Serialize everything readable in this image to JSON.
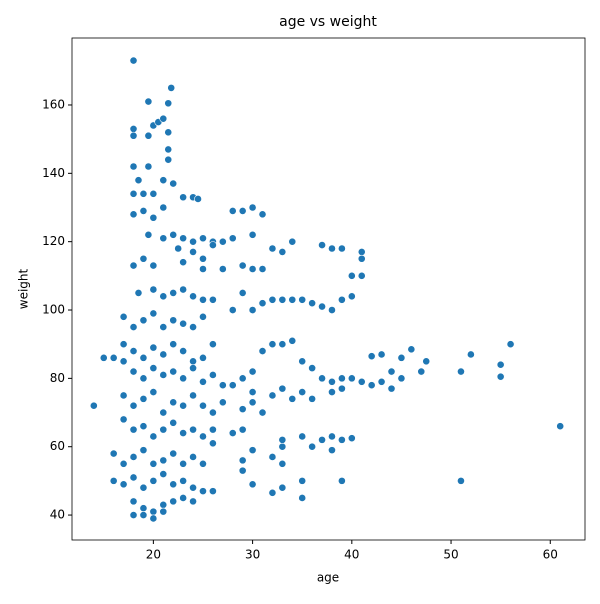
{
  "chart_data": {
    "type": "scatter",
    "title": "age vs weight",
    "x_label": "age",
    "y_label": "weight",
    "color": "#1f77b4",
    "xlim": [
      11.8,
      63.5
    ],
    "ylim": [
      32.7,
      179.6
    ],
    "xticks": [
      20,
      30,
      40,
      50,
      60
    ],
    "yticks": [
      40,
      60,
      80,
      100,
      120,
      140,
      160
    ],
    "x": [
      18,
      21.8,
      19.5,
      21.5,
      14,
      15,
      61,
      56,
      52,
      51,
      51,
      55,
      55,
      47.5,
      47,
      46,
      45,
      45,
      44,
      43,
      42,
      18,
      18,
      19.5,
      20,
      20.5,
      21,
      21.5,
      21.5,
      21.5,
      18,
      18.5,
      19.5,
      18,
      19,
      20,
      21,
      22,
      23,
      24,
      24.5,
      18,
      19,
      20,
      21,
      19.5,
      21,
      22,
      23,
      24,
      25,
      26,
      27,
      28,
      22.5,
      24,
      25,
      26,
      23,
      25,
      27,
      29,
      30,
      31,
      18,
      19,
      20,
      18.5,
      20,
      21,
      22,
      23,
      24,
      25,
      26,
      28,
      29,
      30,
      31,
      32,
      33,
      34,
      35,
      36,
      37,
      38,
      39,
      40,
      41,
      41,
      41,
      39,
      38,
      37,
      40,
      34,
      32,
      30,
      31,
      30,
      29,
      28,
      33,
      17,
      18,
      19,
      20,
      21,
      22,
      23,
      24,
      25,
      17,
      18,
      19,
      20,
      21,
      22,
      23,
      24,
      25,
      26,
      16,
      17,
      18,
      19,
      20,
      21,
      22,
      23,
      24,
      25,
      26,
      27,
      28,
      29,
      30,
      31,
      32,
      33,
      34,
      35,
      36,
      37,
      38,
      39,
      40,
      41,
      42,
      43,
      44,
      38,
      39,
      36,
      34,
      32,
      30,
      29,
      31,
      28,
      29,
      27,
      30,
      33,
      35,
      17,
      18,
      19,
      20,
      21,
      22,
      23,
      24,
      25,
      26,
      17,
      18,
      19,
      20,
      21,
      22,
      23,
      24,
      25,
      26,
      16,
      17,
      18,
      19,
      20,
      21,
      22,
      23,
      24,
      16,
      17,
      18,
      19,
      20,
      21,
      22,
      23,
      24,
      25,
      18,
      19,
      20,
      21,
      22,
      23,
      24,
      18,
      19,
      20,
      21,
      26,
      29,
      29,
      33,
      33,
      33,
      32,
      30,
      33,
      32,
      35,
      35,
      39,
      35,
      37,
      38,
      39,
      40,
      36,
      38,
      30,
      26,
      25
    ],
    "values": [
      173,
      165,
      161,
      160.5,
      72,
      86,
      66,
      90,
      87,
      82,
      50,
      84,
      80.5,
      85,
      82,
      88.5,
      86,
      80,
      82,
      87,
      86.5,
      153,
      151,
      151,
      154,
      155,
      156,
      152,
      147,
      144,
      142,
      138,
      142,
      134,
      134,
      134,
      138,
      137,
      133,
      133,
      132.5,
      128,
      129,
      127,
      130,
      122,
      121,
      122,
      121,
      120,
      121,
      120,
      120,
      121,
      118,
      117,
      115,
      119,
      114,
      112,
      112,
      113,
      112,
      112,
      113,
      115,
      113,
      105,
      106,
      104,
      105,
      106,
      104,
      103,
      103,
      100,
      105,
      100,
      102,
      103,
      103,
      103,
      103,
      102,
      101,
      100,
      103,
      104,
      110,
      117,
      115,
      118,
      118,
      119,
      110,
      120,
      118,
      122,
      128,
      130,
      129,
      129,
      117,
      98,
      95,
      97,
      99,
      95,
      97,
      96,
      95,
      98,
      90,
      88,
      86,
      89,
      87,
      90,
      88,
      85,
      86,
      90,
      86,
      85,
      82,
      80,
      83,
      81,
      82,
      80,
      83,
      79,
      81,
      78,
      78,
      80,
      82,
      88,
      90,
      90,
      91,
      85,
      83,
      80,
      79,
      80,
      80,
      79,
      78,
      79,
      77,
      76,
      77,
      74,
      74,
      75,
      73,
      71,
      70,
      64,
      65,
      73,
      76,
      77,
      76,
      75,
      72,
      74,
      76,
      70,
      73,
      72,
      75,
      72,
      70,
      68,
      65,
      66,
      63,
      65,
      67,
      64,
      65,
      63,
      61,
      58,
      55,
      57,
      59,
      55,
      56,
      58,
      55,
      57,
      50,
      49,
      51,
      48,
      50,
      52,
      49,
      50,
      48,
      47,
      44,
      42,
      41,
      43,
      44,
      45,
      44,
      40,
      40,
      39,
      41,
      47,
      53,
      56,
      55,
      60,
      62,
      57,
      49,
      48,
      46.5,
      45,
      50,
      50,
      63,
      62,
      63,
      62,
      62.5,
      60,
      59,
      59,
      65,
      55
    ]
  }
}
